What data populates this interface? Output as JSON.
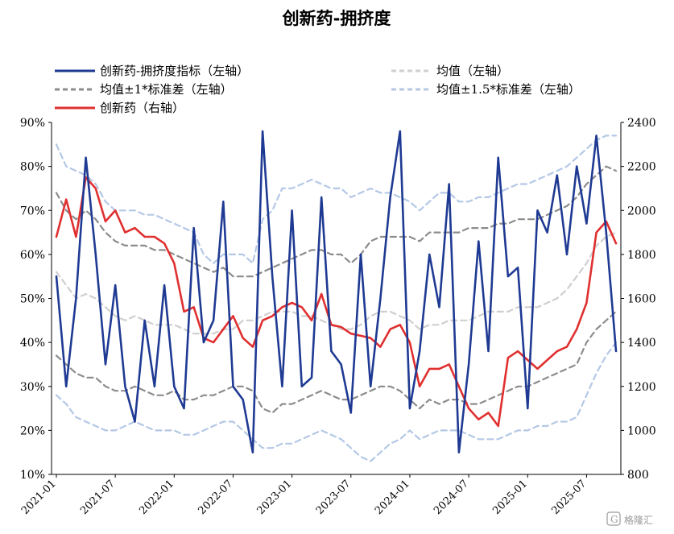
{
  "chart_data": {
    "type": "line",
    "title": "创新药-拥挤度",
    "left_axis": {
      "ylim": [
        0.1,
        0.9
      ],
      "ticks": [
        "10%",
        "20%",
        "30%",
        "40%",
        "50%",
        "60%",
        "70%",
        "80%",
        "90%"
      ]
    },
    "right_axis": {
      "ylim": [
        800,
        2400
      ],
      "ticks": [
        "800",
        "1000",
        "1200",
        "1400",
        "1600",
        "1800",
        "2000",
        "2200",
        "2400"
      ]
    },
    "x_ticks": [
      "2021-01",
      "2021-07",
      "2022-01",
      "2022-07",
      "2023-01",
      "2023-07",
      "2024-01",
      "2024-07",
      "2025-01",
      "2025-07"
    ],
    "legend_placement": "top",
    "x": [
      "2021-01",
      "2021-02",
      "2021-03",
      "2021-04",
      "2021-05",
      "2021-06",
      "2021-07",
      "2021-08",
      "2021-09",
      "2021-10",
      "2021-11",
      "2021-12",
      "2022-01",
      "2022-02",
      "2022-03",
      "2022-04",
      "2022-05",
      "2022-06",
      "2022-07",
      "2022-08",
      "2022-09",
      "2022-10",
      "2022-11",
      "2022-12",
      "2023-01",
      "2023-02",
      "2023-03",
      "2023-04",
      "2023-05",
      "2023-06",
      "2023-07",
      "2023-08",
      "2023-09",
      "2023-10",
      "2023-11",
      "2023-12",
      "2024-01",
      "2024-02",
      "2024-03",
      "2024-04",
      "2024-05",
      "2024-06",
      "2024-07",
      "2024-08",
      "2024-09",
      "2024-10",
      "2024-11",
      "2024-12",
      "2025-01",
      "2025-02",
      "2025-03",
      "2025-04",
      "2025-05",
      "2025-06",
      "2025-07",
      "2025-08",
      "2025-09",
      "2025-10"
    ],
    "series": [
      {
        "name": "创新药-拥挤度指标（左轴）",
        "axis": "left",
        "color": "#1f3a93",
        "style": "solid",
        "values": [
          0.55,
          0.3,
          0.5,
          0.82,
          0.6,
          0.35,
          0.53,
          0.3,
          0.22,
          0.45,
          0.3,
          0.53,
          0.3,
          0.25,
          0.66,
          0.4,
          0.45,
          0.72,
          0.3,
          0.27,
          0.15,
          0.88,
          0.55,
          0.3,
          0.7,
          0.3,
          0.32,
          0.73,
          0.38,
          0.35,
          0.24,
          0.6,
          0.3,
          0.5,
          0.73,
          0.88,
          0.25,
          0.38,
          0.6,
          0.48,
          0.76,
          0.15,
          0.35,
          0.63,
          0.38,
          0.82,
          0.55,
          0.57,
          0.25,
          0.7,
          0.65,
          0.78,
          0.6,
          0.8,
          0.67,
          0.87,
          0.65,
          0.38
        ]
      },
      {
        "name": "创新药（右轴）",
        "axis": "right",
        "color": "#e03030",
        "style": "solid",
        "values": [
          1880,
          2050,
          1880,
          2150,
          2100,
          1950,
          2000,
          1900,
          1920,
          1880,
          1880,
          1850,
          1760,
          1540,
          1560,
          1420,
          1400,
          1460,
          1520,
          1420,
          1380,
          1500,
          1520,
          1560,
          1580,
          1560,
          1500,
          1620,
          1480,
          1470,
          1440,
          1430,
          1420,
          1380,
          1460,
          1480,
          1400,
          1200,
          1280,
          1280,
          1300,
          1200,
          1100,
          1050,
          1080,
          1020,
          1330,
          1360,
          1320,
          1280,
          1320,
          1360,
          1380,
          1460,
          1580,
          1900,
          1950,
          1850
        ]
      },
      {
        "name": "均值（左轴）",
        "axis": "left",
        "color": "#cfcfcf",
        "style": "dashed",
        "values": [
          0.56,
          0.53,
          0.5,
          0.51,
          0.5,
          0.48,
          0.46,
          0.45,
          0.46,
          0.45,
          0.44,
          0.44,
          0.44,
          0.43,
          0.42,
          0.42,
          0.42,
          0.43,
          0.43,
          0.45,
          0.45,
          0.46,
          0.47,
          0.47,
          0.47,
          0.46,
          0.46,
          0.45,
          0.44,
          0.43,
          0.43,
          0.44,
          0.46,
          0.47,
          0.47,
          0.46,
          0.45,
          0.43,
          0.44,
          0.44,
          0.45,
          0.45,
          0.45,
          0.46,
          0.47,
          0.47,
          0.47,
          0.48,
          0.48,
          0.48,
          0.49,
          0.5,
          0.52,
          0.55,
          0.58,
          0.62,
          0.64,
          0.65
        ]
      },
      {
        "name": "均值±1*标准差（左轴）",
        "axis": "left",
        "color": "#8c8c8c",
        "style": "dashed",
        "values": [
          0.74,
          0.7,
          0.68,
          0.7,
          0.68,
          0.65,
          0.63,
          0.62,
          0.62,
          0.62,
          0.61,
          0.61,
          0.6,
          0.59,
          0.58,
          0.57,
          0.56,
          0.57,
          0.55,
          0.55,
          0.55,
          0.56,
          0.57,
          0.58,
          0.59,
          0.6,
          0.61,
          0.61,
          0.6,
          0.6,
          0.58,
          0.6,
          0.63,
          0.64,
          0.64,
          0.64,
          0.64,
          0.63,
          0.65,
          0.65,
          0.65,
          0.65,
          0.66,
          0.66,
          0.66,
          0.67,
          0.67,
          0.68,
          0.68,
          0.68,
          0.69,
          0.7,
          0.71,
          0.73,
          0.76,
          0.78,
          0.8,
          0.79
        ]
      },
      {
        "name": "均值±1*标准差（左轴）-下",
        "axis": "left",
        "color": "#8c8c8c",
        "style": "dashed",
        "values": [
          0.37,
          0.35,
          0.33,
          0.32,
          0.32,
          0.3,
          0.29,
          0.29,
          0.3,
          0.29,
          0.28,
          0.28,
          0.29,
          0.27,
          0.27,
          0.28,
          0.28,
          0.29,
          0.3,
          0.3,
          0.29,
          0.25,
          0.24,
          0.26,
          0.26,
          0.27,
          0.28,
          0.29,
          0.28,
          0.27,
          0.27,
          0.28,
          0.29,
          0.3,
          0.3,
          0.29,
          0.27,
          0.25,
          0.27,
          0.26,
          0.27,
          0.27,
          0.26,
          0.26,
          0.27,
          0.28,
          0.29,
          0.3,
          0.3,
          0.31,
          0.32,
          0.33,
          0.34,
          0.35,
          0.4,
          0.43,
          0.45,
          0.47
        ]
      },
      {
        "name": "均值±1.5*标准差（左轴）",
        "axis": "left",
        "color": "#b4c8e6",
        "style": "dashed",
        "values": [
          0.85,
          0.8,
          0.79,
          0.78,
          0.76,
          0.72,
          0.7,
          0.7,
          0.7,
          0.69,
          0.69,
          0.68,
          0.67,
          0.66,
          0.65,
          0.6,
          0.58,
          0.6,
          0.6,
          0.6,
          0.58,
          0.68,
          0.7,
          0.75,
          0.75,
          0.76,
          0.77,
          0.76,
          0.75,
          0.75,
          0.73,
          0.74,
          0.75,
          0.74,
          0.74,
          0.73,
          0.72,
          0.7,
          0.72,
          0.74,
          0.74,
          0.72,
          0.72,
          0.73,
          0.73,
          0.74,
          0.75,
          0.76,
          0.76,
          0.77,
          0.78,
          0.79,
          0.8,
          0.82,
          0.84,
          0.86,
          0.87,
          0.87
        ]
      },
      {
        "name": "均值±1.5*标准差（左轴）-下",
        "axis": "left",
        "color": "#b4c8e6",
        "style": "dashed",
        "values": [
          0.28,
          0.26,
          0.23,
          0.22,
          0.21,
          0.2,
          0.2,
          0.21,
          0.22,
          0.21,
          0.2,
          0.2,
          0.2,
          0.19,
          0.19,
          0.2,
          0.21,
          0.22,
          0.22,
          0.2,
          0.18,
          0.16,
          0.16,
          0.17,
          0.17,
          0.18,
          0.19,
          0.2,
          0.19,
          0.18,
          0.16,
          0.14,
          0.13,
          0.15,
          0.17,
          0.18,
          0.2,
          0.18,
          0.19,
          0.2,
          0.2,
          0.2,
          0.19,
          0.18,
          0.18,
          0.18,
          0.19,
          0.2,
          0.2,
          0.21,
          0.21,
          0.22,
          0.22,
          0.23,
          0.28,
          0.33,
          0.37,
          0.4
        ]
      }
    ],
    "legend": [
      {
        "label": "创新药-拥挤度指标（左轴）",
        "color": "#1f3a93",
        "style": "solid"
      },
      {
        "label": "均值（左轴）",
        "color": "#cfcfcf",
        "style": "dashed"
      },
      {
        "label": "均值±1*标准差（左轴）",
        "color": "#8c8c8c",
        "style": "dashed"
      },
      {
        "label": "均值±1.5*标准差（左轴）",
        "color": "#b4c8e6",
        "style": "dashed"
      },
      {
        "label": "创新药（右轴）",
        "color": "#e03030",
        "style": "solid"
      }
    ]
  },
  "watermark": "格隆汇"
}
